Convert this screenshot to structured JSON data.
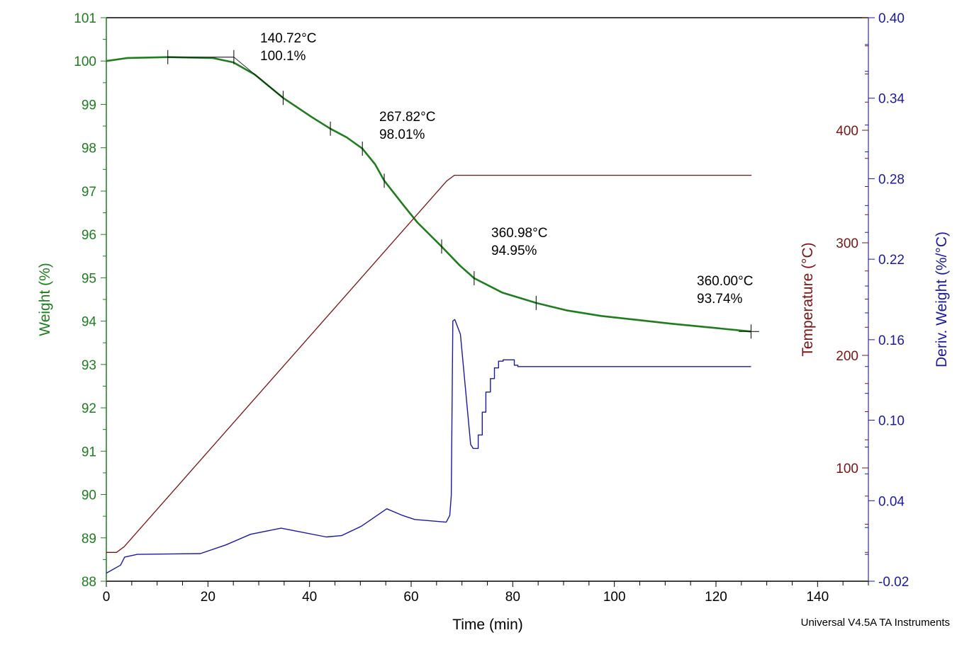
{
  "chart_data": {
    "type": "line",
    "colors": {
      "weight": "#1f7d1f",
      "temperature": "#7b1414",
      "deriv": "#1a1aa8",
      "annotation": "#000000"
    },
    "x_axis": {
      "label": "Time (min)",
      "range": [
        0,
        150
      ],
      "ticks": [
        "0",
        "20",
        "40",
        "60",
        "80",
        "100",
        "120",
        "140"
      ],
      "tick_values": [
        0,
        20,
        40,
        60,
        80,
        100,
        120,
        140
      ]
    },
    "y_left": {
      "label": "Weight (%)",
      "range": [
        88,
        101
      ],
      "ticks": [
        "88",
        "89",
        "90",
        "91",
        "92",
        "93",
        "94",
        "95",
        "96",
        "97",
        "98",
        "99",
        "100",
        "101"
      ],
      "tick_values": [
        88,
        89,
        90,
        91,
        92,
        93,
        94,
        95,
        96,
        97,
        98,
        99,
        100,
        101
      ]
    },
    "y_right_temp": {
      "label": "Temperature (°C)",
      "range": [
        0,
        500
      ],
      "ticks": [
        "100",
        "200",
        "300",
        "400"
      ],
      "tick_values": [
        100,
        200,
        300,
        400
      ]
    },
    "y_right_deriv": {
      "label": "Deriv. Weight (%/°C)",
      "range": [
        -0.02,
        0.4
      ],
      "ticks": [
        "-0.02",
        "0.04",
        "0.10",
        "0.16",
        "0.22",
        "0.28",
        "0.34",
        "0.40"
      ],
      "tick_values": [
        -0.02,
        0.04,
        0.1,
        0.16,
        0.22,
        0.28,
        0.34,
        0.4
      ]
    },
    "grid": false,
    "series": [
      {
        "axis": "weight",
        "points": [
          [
            0,
            100.0
          ],
          [
            4.2,
            100.07
          ],
          [
            12.1,
            100.09
          ],
          [
            20.9,
            100.07
          ],
          [
            25,
            99.97
          ],
          [
            29.2,
            99.69
          ],
          [
            34.8,
            99.15
          ],
          [
            40.4,
            98.71
          ],
          [
            44.1,
            98.44
          ],
          [
            47.3,
            98.24
          ],
          [
            50.4,
            97.98
          ],
          [
            52.9,
            97.62
          ],
          [
            54.7,
            97.24
          ],
          [
            58.5,
            96.67
          ],
          [
            61.2,
            96.28
          ],
          [
            66,
            95.72
          ],
          [
            69.6,
            95.28
          ],
          [
            72.4,
            94.99
          ],
          [
            77.9,
            94.66
          ],
          [
            84.6,
            94.42
          ],
          [
            90.5,
            94.25
          ],
          [
            97.4,
            94.12
          ],
          [
            104.4,
            94.03
          ],
          [
            111.3,
            93.94
          ],
          [
            118.3,
            93.86
          ],
          [
            126.9,
            93.76
          ]
        ]
      },
      {
        "axis": "temperature",
        "points": [
          [
            0,
            25
          ],
          [
            2,
            25
          ],
          [
            3.5,
            30
          ],
          [
            67,
            355
          ],
          [
            68.5,
            360
          ],
          [
            127,
            360
          ]
        ]
      },
      {
        "axis": "deriv",
        "points": [
          [
            0,
            -0.014
          ],
          [
            2.8,
            -0.008
          ],
          [
            3.6,
            -0.002
          ],
          [
            6.1,
            0.0
          ],
          [
            18.5,
            0.0006
          ],
          [
            23.5,
            0.007
          ],
          [
            28.4,
            0.015
          ],
          [
            34.4,
            0.0195
          ],
          [
            37.9,
            0.017
          ],
          [
            43.3,
            0.013
          ],
          [
            46.3,
            0.014
          ],
          [
            50.2,
            0.021
          ],
          [
            55.2,
            0.034
          ],
          [
            58.3,
            0.029
          ],
          [
            60.7,
            0.026
          ],
          [
            66.9,
            0.024
          ],
          [
            67.6,
            0.029
          ],
          [
            67.9,
            0.044
          ],
          [
            68.2,
            0.174
          ],
          [
            68.6,
            0.175
          ],
          [
            69.7,
            0.164
          ],
          [
            71.7,
            0.082
          ],
          [
            72.2,
            0.079
          ],
          [
            73.2,
            0.079
          ],
          [
            73.2,
            0.089
          ],
          [
            74.0,
            0.089
          ],
          [
            74.0,
            0.106
          ],
          [
            74.7,
            0.106
          ],
          [
            74.7,
            0.121
          ],
          [
            75.6,
            0.121
          ],
          [
            75.6,
            0.131
          ],
          [
            76.4,
            0.131
          ],
          [
            76.4,
            0.139
          ],
          [
            77.2,
            0.139
          ],
          [
            77.2,
            0.144
          ],
          [
            78.1,
            0.144
          ],
          [
            78.1,
            0.145
          ],
          [
            80.3,
            0.145
          ],
          [
            80.3,
            0.141
          ],
          [
            81.0,
            0.141
          ],
          [
            81.0,
            0.14
          ],
          [
            126.9,
            0.14
          ]
        ]
      }
    ],
    "analysis_markers_min": [
      12.1,
      25.1,
      34.8,
      44.1,
      50.4,
      54.7,
      66.0,
      72.4,
      84.6,
      126.9
    ],
    "annotations": [
      {
        "temp": "140.72°C",
        "weight": "100.1%"
      },
      {
        "temp": "267.82°C",
        "weight": "98.01%"
      },
      {
        "temp": "360.98°C",
        "weight": "94.95%"
      },
      {
        "temp": "360.00°C",
        "weight": "93.74%"
      }
    ],
    "footer": "Universal V4.5A TA Instruments"
  }
}
